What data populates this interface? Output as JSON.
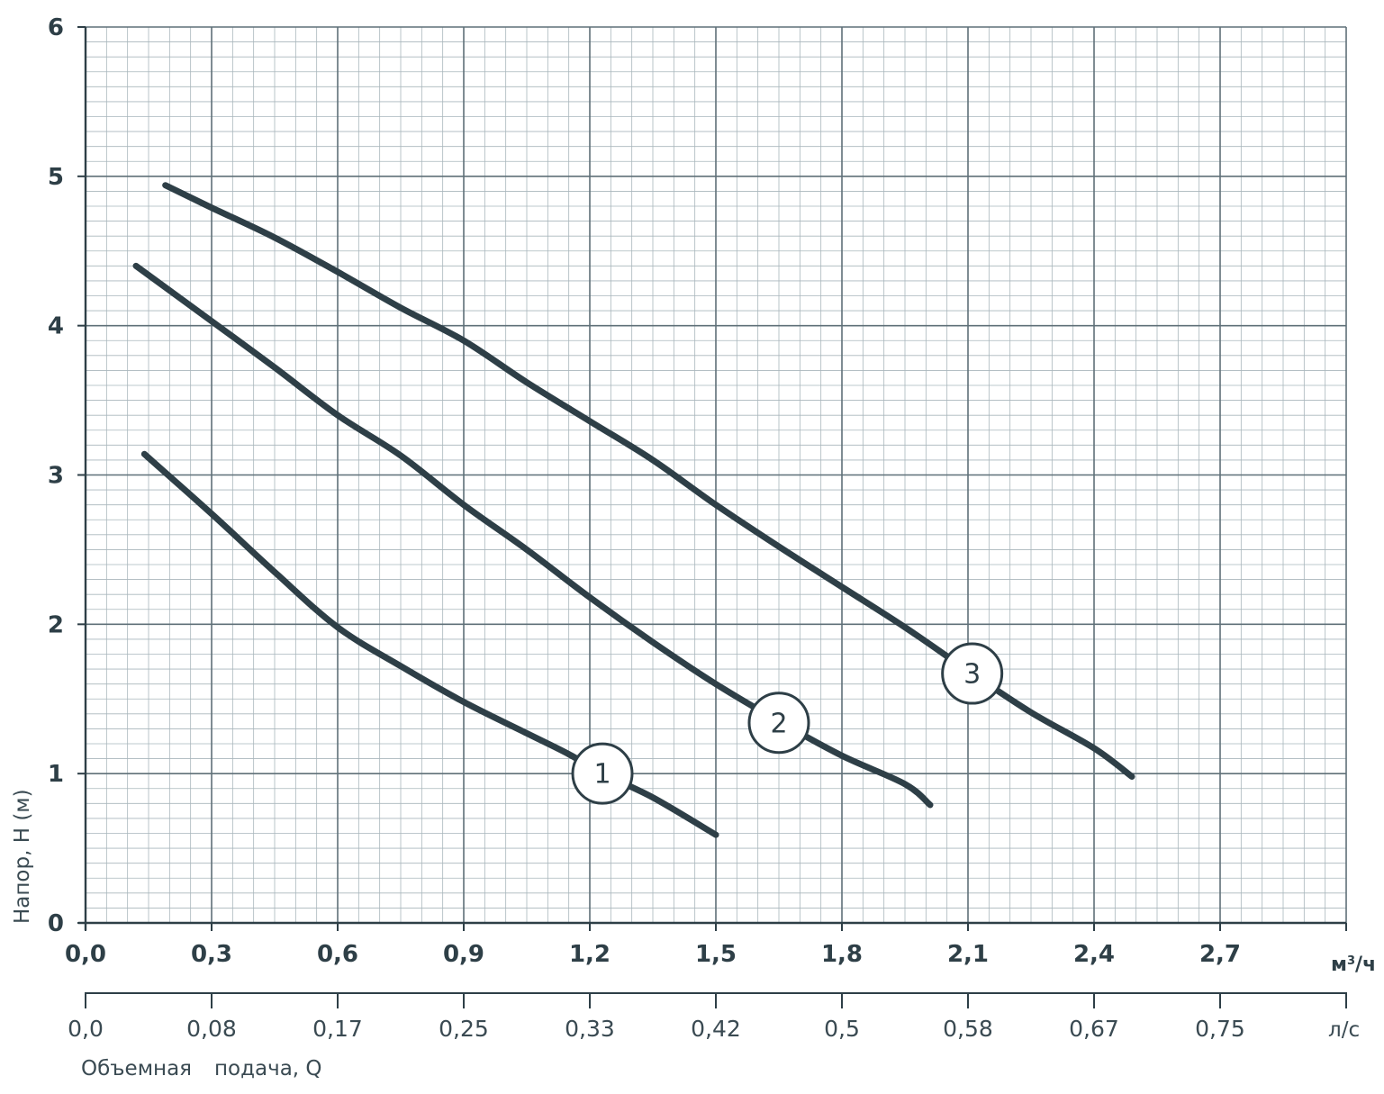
{
  "chart_data": {
    "type": "line",
    "title": "",
    "xlabel": "Объемная подача, Q",
    "xlabel_parts": [
      "Объемная",
      "подача, Q"
    ],
    "ylabel": "Напор, Н (м)",
    "x_unit_primary": "м³/ч",
    "x_unit_primary_base": "м",
    "x_unit_primary_sup": "3",
    "x_unit_primary_tail": "/ч",
    "x_unit_secondary": "л/с",
    "xlim": [
      0,
      3.0
    ],
    "ylim": [
      0,
      6
    ],
    "x_ticks": [
      "0,0",
      "0,3",
      "0,6",
      "0,9",
      "1,2",
      "1,5",
      "1,8",
      "2,1",
      "2,4",
      "2,7"
    ],
    "x_ticks_secondary": [
      "0,0",
      "0,08",
      "0,17",
      "0,25",
      "0,33",
      "0,42",
      "0,5",
      "0,58",
      "0,67",
      "0,75"
    ],
    "y_ticks": [
      "0",
      "1",
      "2",
      "3",
      "4",
      "5",
      "6"
    ],
    "grid": true,
    "grid_colors": {
      "minor": "#a9b6bc",
      "major": "#5f7078"
    },
    "line_color": "#2e3f47",
    "series": [
      {
        "label": "1",
        "points": [
          [
            0.14,
            3.14
          ],
          [
            0.3,
            2.74
          ],
          [
            0.45,
            2.35
          ],
          [
            0.6,
            1.98
          ],
          [
            0.75,
            1.72
          ],
          [
            0.9,
            1.48
          ],
          [
            1.05,
            1.27
          ],
          [
            1.15,
            1.13
          ],
          [
            1.23,
            1.0
          ],
          [
            1.35,
            0.84
          ],
          [
            1.5,
            0.59
          ]
        ],
        "marker_at": [
          1.23,
          1.0
        ]
      },
      {
        "label": "2",
        "points": [
          [
            0.12,
            4.4
          ],
          [
            0.3,
            4.03
          ],
          [
            0.45,
            3.72
          ],
          [
            0.6,
            3.4
          ],
          [
            0.75,
            3.13
          ],
          [
            0.9,
            2.8
          ],
          [
            1.05,
            2.5
          ],
          [
            1.2,
            2.18
          ],
          [
            1.35,
            1.88
          ],
          [
            1.5,
            1.6
          ],
          [
            1.65,
            1.35
          ],
          [
            1.8,
            1.12
          ],
          [
            1.95,
            0.93
          ],
          [
            2.01,
            0.79
          ]
        ],
        "marker_at": [
          1.65,
          1.34
        ]
      },
      {
        "label": "3",
        "points": [
          [
            0.19,
            4.94
          ],
          [
            0.3,
            4.79
          ],
          [
            0.45,
            4.59
          ],
          [
            0.6,
            4.36
          ],
          [
            0.75,
            4.12
          ],
          [
            0.9,
            3.9
          ],
          [
            1.05,
            3.62
          ],
          [
            1.2,
            3.36
          ],
          [
            1.35,
            3.1
          ],
          [
            1.5,
            2.8
          ],
          [
            1.65,
            2.52
          ],
          [
            1.8,
            2.25
          ],
          [
            1.95,
            1.98
          ],
          [
            2.11,
            1.67
          ],
          [
            2.25,
            1.41
          ],
          [
            2.4,
            1.17
          ],
          [
            2.49,
            0.98
          ]
        ],
        "marker_at": [
          2.11,
          1.67
        ]
      }
    ]
  }
}
